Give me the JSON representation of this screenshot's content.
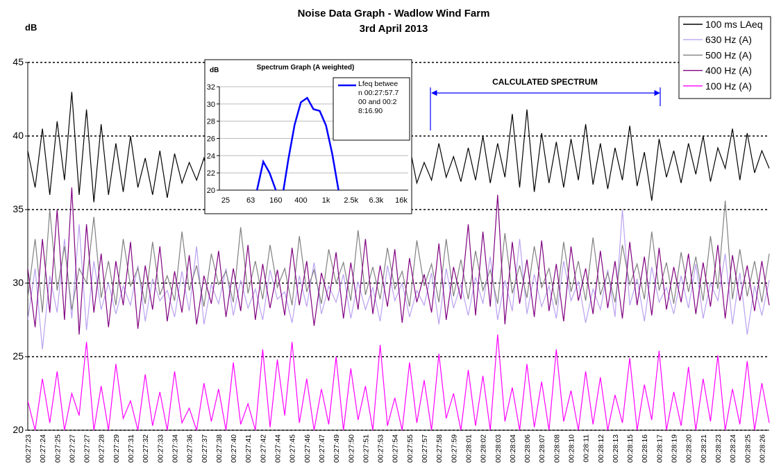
{
  "chart_data": [
    {
      "type": "line",
      "title": "Noise Data Graph - Wadlow Wind Farm",
      "subtitle": "3rd April 2013",
      "y_label": "dB",
      "annotation": "CALCULATED SPECTRUM",
      "categories": [
        "00:27:23",
        null,
        "00:27:24",
        null,
        "00:27:25",
        null,
        "00:27:27",
        null,
        "00:27:27",
        null,
        "00:27:28",
        null,
        "00:27:29",
        null,
        "00:27:31",
        null,
        "00:27:32",
        null,
        "00:27:33",
        null,
        "00:27:34",
        null,
        "00:27:36",
        null,
        "00:27:37",
        null,
        "00:27:38",
        null,
        "00:27:40",
        null,
        "00:27:41",
        null,
        "00:27:42",
        null,
        "00:27:44",
        null,
        "00:27:45",
        null,
        "00:27:46",
        null,
        "00:27:47",
        null,
        "00:27:49",
        null,
        "00:27:50",
        null,
        "00:27:51",
        null,
        "00:27:53",
        null,
        "00:27:54",
        null,
        "00:27:55",
        null,
        "00:27:57",
        null,
        "00:27:58",
        null,
        "00:27:59",
        null,
        "00:28:01",
        null,
        "00:28:02",
        null,
        "00:28:03",
        null,
        "00:28:04",
        null,
        "00:28:06",
        null,
        "00:28:07",
        null,
        "00:28:08",
        null,
        "00:28:10",
        null,
        "00:28:11",
        null,
        "00:28:12",
        null,
        "00:28:13",
        null,
        "00:28:15",
        null,
        "00:28:16",
        null,
        "00:28:17",
        null,
        "00:28:19",
        null,
        "00:28:20",
        null,
        "00:28:21",
        null,
        "00:28:23",
        null,
        "00:28:24",
        null,
        "00:28:25",
        null,
        "00:28:26",
        null
      ],
      "ylim": [
        20,
        45
      ],
      "yticks": [
        20,
        25,
        30,
        35,
        40,
        45
      ],
      "grid": true,
      "series": [
        {
          "name": "100 ms LAeq",
          "color": "#000000",
          "values": [
            39,
            36.5,
            40.5,
            36,
            41,
            37,
            43,
            36,
            41.8,
            35.5,
            40.8,
            36,
            39.5,
            36.2,
            40,
            36.5,
            38.5,
            36,
            39,
            35.8,
            38.8,
            36.8,
            38.2,
            37,
            38.5,
            36.5,
            38,
            36.2,
            38.3,
            36,
            38.6,
            36.4,
            39,
            36.8,
            38.5,
            36.2,
            39.2,
            36.6,
            38.4,
            36.3,
            38.7,
            37,
            39.5,
            36.7,
            38.8,
            36.4,
            39,
            36.9,
            38.6,
            36.5,
            38.9,
            37.1,
            39.3,
            36.8,
            38.2,
            37,
            39.5,
            37.2,
            38.6,
            36.9,
            39.2,
            37,
            40,
            36.8,
            39.5,
            37.2,
            41.5,
            36.5,
            41.8,
            36.2,
            40.2,
            36.8,
            39.6,
            36.5,
            39.8,
            37,
            40.8,
            36.7,
            39.5,
            36.4,
            39.2,
            37,
            40.7,
            36.6,
            38.9,
            35.6,
            39.8,
            37.2,
            39,
            36.8,
            39.5,
            37.4,
            40,
            36.9,
            39.2,
            37.8,
            40.5,
            37,
            40.2,
            37.5,
            39,
            37.8
          ]
        },
        {
          "name": "630 Hz (A)",
          "color": "#b9a2f0",
          "values": [
            27.5,
            31,
            25.5,
            30.5,
            28,
            33,
            27.6,
            34,
            26.8,
            31.5,
            28.2,
            30,
            27.9,
            29.8,
            28.5,
            31.2,
            27.4,
            30.3,
            28.8,
            29.5,
            27.7,
            30.8,
            28.1,
            32.5,
            27.2,
            29.9,
            28.6,
            31,
            27.8,
            30.2,
            28.3,
            29.6,
            27.5,
            30.9,
            28.9,
            29.4,
            27.3,
            30.5,
            28.4,
            31.4,
            27.9,
            29.8,
            28.7,
            30.6,
            27.6,
            30.1,
            28.2,
            29.7,
            27.4,
            31.2,
            28.8,
            30,
            27.7,
            29.5,
            28.5,
            30.7,
            27.2,
            31,
            28.3,
            29.9,
            27.8,
            30.4,
            28.6,
            31.8,
            27.5,
            30.2,
            28.1,
            33,
            27.9,
            30.6,
            28.4,
            29.8,
            27.6,
            31.5,
            28.8,
            30.1,
            27.3,
            29.6,
            28.2,
            30.9,
            27.7,
            35,
            28.5,
            30.3,
            27.4,
            31.1,
            28.7,
            29.7,
            27.9,
            30.5,
            28.3,
            31.3,
            27.6,
            30,
            28.8,
            32,
            27.2,
            30.7,
            26.5,
            29.8,
            27.8,
            30.2
          ]
        },
        {
          "name": "500 Hz (A)",
          "color": "#808080",
          "values": [
            29,
            33,
            28,
            35,
            29.5,
            32.5,
            28.2,
            31,
            30,
            34.5,
            29,
            31.5,
            28.5,
            33,
            29.8,
            31,
            28.6,
            32.8,
            29.2,
            30.5,
            28.8,
            33.5,
            29.5,
            31.2,
            28.4,
            32,
            29.9,
            30.8,
            28.7,
            33.8,
            29.3,
            31.5,
            28.9,
            32.6,
            29.7,
            31,
            28.5,
            33.2,
            29.4,
            30.9,
            28.6,
            32.3,
            30,
            31.4,
            28.8,
            33.6,
            29.2,
            31.1,
            28.9,
            32.4,
            29.6,
            30.8,
            28.4,
            32.9,
            29.8,
            31.3,
            28.7,
            33,
            29.1,
            31.6,
            28.9,
            32.2,
            29.5,
            30.9,
            28.6,
            33.4,
            29.3,
            31.2,
            29,
            32.5,
            29.7,
            31,
            28.5,
            32.8,
            29.4,
            31.5,
            28.8,
            33.1,
            29.2,
            30.7,
            28.7,
            32.6,
            29.9,
            31.3,
            28.9,
            33.5,
            29.5,
            31.4,
            28.6,
            32.1,
            29.4,
            31.8,
            28.8,
            33.2,
            29.6,
            35.6,
            28.9,
            32.3,
            29.1,
            31.5,
            28.7,
            32
          ]
        },
        {
          "name": "400 Hz (A)",
          "color": "#800080",
          "values": [
            31,
            27,
            33,
            28,
            35,
            27.5,
            36.5,
            26.5,
            34,
            28,
            32,
            27,
            31.5,
            28.5,
            32.8,
            26.9,
            31.2,
            28.2,
            32.5,
            27.4,
            30.8,
            28,
            31.9,
            27.2,
            30.5,
            28.6,
            32.2,
            27.7,
            31,
            28.1,
            32.6,
            27.5,
            31.3,
            28.3,
            30.9,
            27.8,
            32.4,
            28.5,
            31.5,
            27.1,
            30.7,
            28.8,
            32.1,
            27.6,
            31.4,
            28.2,
            33,
            27.9,
            31.2,
            28.4,
            32.3,
            27.3,
            31.7,
            28.7,
            30.6,
            28,
            32.7,
            27.5,
            31.1,
            28.9,
            34,
            27.8,
            33.5,
            28.4,
            36,
            27.2,
            32.8,
            28.6,
            31.6,
            27.7,
            32.9,
            28.1,
            31.3,
            27.4,
            32.5,
            28.8,
            31,
            27.9,
            32.2,
            28.3,
            31.5,
            27.6,
            32.8,
            28.5,
            31.8,
            27.8,
            32.4,
            28.2,
            31.1,
            28.7,
            32,
            27.9,
            31.4,
            28.4,
            32.6,
            27.6,
            31.9,
            28.8,
            31.2,
            28.1,
            31.5,
            28.5
          ]
        },
        {
          "name": "100 Hz (A)",
          "color": "#ff00ff",
          "values": [
            22,
            20,
            23.5,
            20.5,
            24,
            20,
            22.5,
            21,
            26,
            20,
            23,
            20,
            24.5,
            20.8,
            22,
            20,
            23.8,
            20.3,
            22.6,
            20,
            24,
            20.5,
            21.5,
            20,
            23.2,
            20.6,
            22.8,
            20,
            24.6,
            20.4,
            21.8,
            20,
            25.5,
            20.2,
            24.8,
            21,
            26,
            20.5,
            23.5,
            20,
            22.8,
            20.4,
            25,
            20,
            24.2,
            20.7,
            23,
            20,
            25.8,
            20.3,
            22.2,
            20,
            24.6,
            20.5,
            23.4,
            20,
            25.2,
            20.8,
            22.5,
            20,
            24.1,
            20.3,
            23.7,
            20,
            26.5,
            20.6,
            22.9,
            20,
            24.5,
            20.2,
            23.3,
            20,
            25.5,
            20.6,
            22.7,
            20,
            24,
            20.4,
            23.6,
            20,
            22.4,
            20.5,
            24.9,
            20,
            23.1,
            20.7,
            25.4,
            20,
            22.6,
            20.3,
            24.3,
            20,
            23.5,
            20.6,
            25.1,
            20,
            22.8,
            20.4,
            24.7,
            20,
            23.2,
            20.5
          ]
        }
      ]
    },
    {
      "type": "line",
      "title": "Spectrum Graph (A weighted)",
      "y_label": "dB",
      "categories": [
        "25",
        null,
        null,
        null,
        "63",
        null,
        null,
        null,
        "160",
        null,
        null,
        null,
        "400",
        null,
        null,
        null,
        "1k",
        null,
        null,
        null,
        "2.5k",
        null,
        null,
        null,
        "6.3k",
        null,
        null,
        null,
        "16k"
      ],
      "ylim": [
        20,
        32
      ],
      "yticks": [
        20,
        22,
        24,
        26,
        28,
        30,
        32
      ],
      "grid": true,
      "series": [
        {
          "name": "Lfeq between 00:27:57.700 and 00:28:16.90",
          "color": "#0000ff",
          "values": [
            null,
            null,
            null,
            null,
            null,
            20,
            23.3,
            22,
            20,
            19,
            23.6,
            27.6,
            30.2,
            30.7,
            29.4,
            29.2,
            27.5,
            24.2,
            20,
            null,
            null,
            null,
            null,
            null,
            null,
            null,
            null,
            null,
            null
          ]
        }
      ]
    }
  ]
}
